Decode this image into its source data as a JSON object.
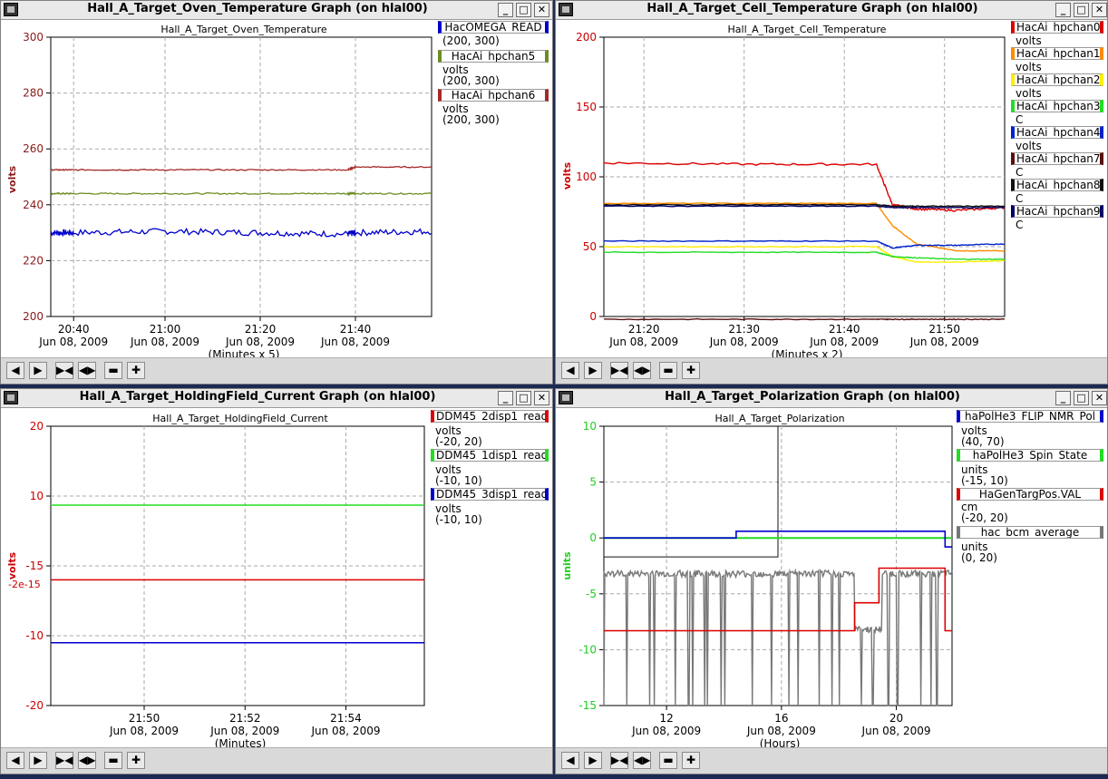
{
  "windows": [
    {
      "id": "oven",
      "title": "Hall_A_Target_Oven_Temperature Graph (on hlal00)",
      "chart_title": "Hall_A_Target_Oven_Temperature",
      "ylabel": "volts",
      "ylabel_color": "#8b1a1a",
      "yticks": [
        "300",
        "280",
        "260",
        "240",
        "220",
        "200"
      ],
      "xticks": [
        {
          "time": "20:40",
          "date": "Jun 08, 2009"
        },
        {
          "time": "21:00",
          "date": "Jun 08, 2009"
        },
        {
          "time": "21:20",
          "date": "Jun 08, 2009"
        },
        {
          "time": "21:40",
          "date": "Jun 08, 2009"
        }
      ],
      "xunit": "(Minutes x 5)",
      "legend": [
        {
          "name": "HacOMEGA_READ",
          "color": "#0000cc",
          "units": "",
          "range": "(200, 300)"
        },
        {
          "name": "HacAi_hpchan5",
          "color": "#6b8e23",
          "units": "volts",
          "range": "(200, 300)"
        },
        {
          "name": "HacAi_hpchan6",
          "color": "#a52a2a",
          "units": "volts",
          "range": "(200, 300)"
        }
      ]
    },
    {
      "id": "cell",
      "title": "Hall_A_Target_Cell_Temperature Graph (on hlal00)",
      "chart_title": "Hall_A_Target_Cell_Temperature",
      "ylabel": "volts",
      "ylabel_color": "#cc0000",
      "yticks": [
        "200",
        "150",
        "100",
        "50",
        "0"
      ],
      "xticks": [
        {
          "time": "21:20",
          "date": "Jun 08, 2009"
        },
        {
          "time": "21:30",
          "date": "Jun 08, 2009"
        },
        {
          "time": "21:40",
          "date": "Jun 08, 2009"
        },
        {
          "time": "21:50",
          "date": "Jun 08, 2009"
        }
      ],
      "xunit": "(Minutes x 2)",
      "legend": [
        {
          "name": "HacAi_hpchan0",
          "color": "#dd0000",
          "units": "volts"
        },
        {
          "name": "HacAi_hpchan1",
          "color": "#ff8c00",
          "units": "volts"
        },
        {
          "name": "HacAi_hpchan2",
          "color": "#ffee00",
          "units": "volts"
        },
        {
          "name": "HacAi_hpchan3",
          "color": "#22dd22",
          "units": "C"
        },
        {
          "name": "HacAi_hpchan4",
          "color": "#0022cc",
          "units": "volts"
        },
        {
          "name": "HacAi_hpchan7",
          "color": "#5a0f0f",
          "units": "C"
        },
        {
          "name": "HacAi_hpchan8",
          "color": "#111111",
          "units": "C"
        },
        {
          "name": "HacAi_hpchan9",
          "color": "#000066",
          "units": "C"
        }
      ]
    },
    {
      "id": "field",
      "title": "Hall_A_Target_HoldingField_Current Graph (on hlal00)",
      "chart_title": "Hall_A_Target_HoldingField_Current",
      "ylabel": "volts",
      "ylabel_color": "#cc0000",
      "ylabel_overlap": "-2e-15",
      "yticks": [
        "20",
        "10",
        "-15",
        "-10",
        "-20"
      ],
      "xticks": [
        {
          "time": "21:50",
          "date": "Jun 08, 2009"
        },
        {
          "time": "21:52",
          "date": "Jun 08, 2009"
        },
        {
          "time": "21:54",
          "date": "Jun 08, 2009"
        }
      ],
      "xunit": "(Minutes)",
      "legend": [
        {
          "name": "DDM45_2disp1_read",
          "color": "#dd0000",
          "units": "volts",
          "range": "(-20, 20)"
        },
        {
          "name": "DDM45_1disp1_read",
          "color": "#22dd22",
          "units": "volts",
          "range": "(-10, 10)"
        },
        {
          "name": "DDM45_3disp1_read",
          "color": "#0000cc",
          "units": "volts",
          "range": "(-10, 10)"
        }
      ]
    },
    {
      "id": "pol",
      "title": "Hall_A_Target_Polarization Graph (on hlal00)",
      "chart_title": "Hall_A_Target_Polarization",
      "ylabel": "units",
      "ylabel_color": "#22cc22",
      "yticks": [
        "10",
        "5",
        "0",
        "-5",
        "-10",
        "-15"
      ],
      "xticks": [
        {
          "time": "12",
          "date": "Jun 08, 2009"
        },
        {
          "time": "16",
          "date": "Jun 08, 2009"
        },
        {
          "time": "20",
          "date": "Jun 08, 2009"
        }
      ],
      "xunit": "(Hours)",
      "legend": [
        {
          "name": "haPolHe3_FLIP_NMR_Pol",
          "color": "#0000cc",
          "units": "volts",
          "range": "(40, 70)"
        },
        {
          "name": "haPolHe3_Spin_State",
          "color": "#22dd22",
          "units": "units",
          "range": "(-15, 10)"
        },
        {
          "name": "HaGenTargPos.VAL",
          "color": "#dd0000",
          "units": "cm",
          "range": "(-20, 20)"
        },
        {
          "name": "hac_bcm_average",
          "color": "#777777",
          "units": "units",
          "range": "(0, 20)"
        }
      ]
    }
  ],
  "toolbar_icons": [
    "arrow-left-icon",
    "arrow-right-icon",
    "zoom-in-x-icon",
    "zoom-out-x-icon",
    "minus-icon",
    "plus-icon"
  ],
  "chart_data": [
    {
      "type": "line",
      "title": "Hall_A_Target_Oven_Temperature",
      "ylabel": "volts",
      "ylim": [
        200,
        300
      ],
      "x": [
        "20:35",
        "20:40",
        "21:00",
        "21:20",
        "21:40",
        "21:42",
        "21:50"
      ],
      "series": [
        {
          "name": "HacOMEGA_READ",
          "values": [
            230,
            230,
            230.5,
            230,
            229.5,
            230,
            230.5
          ]
        },
        {
          "name": "HacAi_hpchan5",
          "values": [
            244,
            244,
            244,
            244,
            244,
            244,
            244
          ]
        },
        {
          "name": "HacAi_hpchan6",
          "values": [
            252.5,
            252.5,
            252.5,
            252.5,
            252.5,
            253.5,
            253.5
          ]
        }
      ]
    },
    {
      "type": "line",
      "title": "Hall_A_Target_Cell_Temperature",
      "ylabel": "volts",
      "ylim": [
        0,
        200
      ],
      "x": [
        "21:15",
        "21:30",
        "21:42",
        "21:44",
        "21:46",
        "21:50",
        "21:55"
      ],
      "series": [
        {
          "name": "HacAi_hpchan0",
          "values": [
            110,
            109,
            109,
            80,
            77,
            76,
            78
          ]
        },
        {
          "name": "HacAi_hpchan1",
          "values": [
            81,
            81,
            81,
            65,
            52,
            47,
            47
          ]
        },
        {
          "name": "HacAi_hpchan2",
          "values": [
            50,
            50,
            50,
            43,
            39,
            39,
            40
          ]
        },
        {
          "name": "HacAi_hpchan3",
          "values": [
            46,
            46,
            46,
            43,
            42,
            41,
            41
          ]
        },
        {
          "name": "HacAi_hpchan4",
          "values": [
            54,
            54,
            54,
            49,
            51,
            51,
            52
          ]
        },
        {
          "name": "HacAi_hpchan7",
          "values": [
            -2,
            -2,
            -2,
            -2,
            -2,
            -2,
            -2
          ]
        },
        {
          "name": "HacAi_hpchan8",
          "values": [
            80,
            80,
            80,
            79,
            79,
            79,
            79
          ]
        },
        {
          "name": "HacAi_hpchan9",
          "values": [
            79,
            79,
            79,
            78,
            78,
            78,
            78
          ]
        }
      ]
    },
    {
      "type": "line",
      "title": "Hall_A_Target_HoldingField_Current",
      "ylabel": "volts",
      "ylim": [
        -20,
        20
      ],
      "x": [
        "21:48",
        "21:50",
        "21:52",
        "21:54",
        "21:56"
      ],
      "series": [
        {
          "name": "DDM45_2disp1_read",
          "values": [
            -2,
            -2,
            -2,
            -2,
            -2
          ]
        },
        {
          "name": "DDM45_1disp1_read",
          "values": [
            8.7,
            8.7,
            8.7,
            8.7,
            8.7
          ]
        },
        {
          "name": "DDM45_3disp1_read",
          "values": [
            -11,
            -11,
            -11,
            -11,
            -11
          ]
        }
      ]
    },
    {
      "type": "line",
      "title": "Hall_A_Target_Polarization",
      "ylabel": "units",
      "ylim": [
        -15,
        10
      ],
      "x": [
        "10",
        "12",
        "14.5",
        "16",
        "18.5",
        "19.2",
        "21.5",
        "21.8"
      ],
      "series": [
        {
          "name": "haPolHe3_FLIP_NMR_Pol",
          "values": [
            0,
            0,
            0.5,
            0.5,
            0.5,
            0.5,
            0.5,
            -0.8
          ]
        },
        {
          "name": "haPolHe3_Spin_State",
          "values": [
            0,
            0,
            0,
            0,
            0,
            0,
            0,
            0
          ]
        },
        {
          "name": "HaGenTargPos.VAL",
          "values": [
            -8.3,
            -8.3,
            -8.3,
            -8.3,
            -5.8,
            -2.7,
            -2.7,
            -8.3
          ]
        },
        {
          "name": "hac_bcm_average",
          "values": [
            -3,
            -3.2,
            -3.1,
            -3.2,
            -3.1,
            -8.2,
            -3.2,
            -3
          ]
        }
      ]
    }
  ]
}
